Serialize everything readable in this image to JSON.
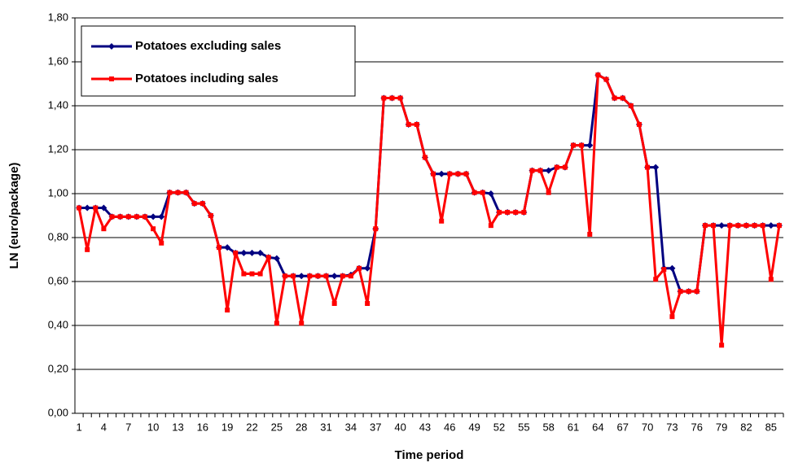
{
  "chart_data": {
    "type": "line",
    "x_label": "Time period",
    "y_label": "LN (euro/package)",
    "categories": [
      "1",
      null,
      null,
      "4",
      null,
      null,
      "7",
      null,
      null,
      "10",
      null,
      null,
      "13",
      null,
      null,
      "16",
      null,
      null,
      "19",
      null,
      null,
      "22",
      null,
      null,
      "25",
      null,
      null,
      "28",
      null,
      null,
      "31",
      null,
      null,
      "34",
      null,
      null,
      "37",
      null,
      null,
      "40",
      null,
      null,
      "43",
      null,
      null,
      "46",
      null,
      null,
      "49",
      null,
      null,
      "52",
      null,
      null,
      "55",
      null,
      null,
      "58",
      null,
      null,
      "61",
      null,
      null,
      "64",
      null,
      null,
      "67",
      null,
      null,
      "70",
      null,
      null,
      "73",
      null,
      null,
      "76",
      null,
      null,
      "79",
      null,
      null,
      "82",
      null,
      null,
      "85",
      null
    ],
    "series": [
      {
        "name": "Potatoes excluding sales",
        "color": "#000080",
        "marker": "diamond",
        "values": [
          0.935,
          0.935,
          0.935,
          0.935,
          0.895,
          0.895,
          0.895,
          0.895,
          0.895,
          0.895,
          0.895,
          1.005,
          1.005,
          1.005,
          0.955,
          0.955,
          0.9,
          0.755,
          0.755,
          0.73,
          0.73,
          0.73,
          0.73,
          0.71,
          0.705,
          0.625,
          0.625,
          0.625,
          0.625,
          0.625,
          0.625,
          0.625,
          0.625,
          0.63,
          0.66,
          0.66,
          0.84,
          1.435,
          1.435,
          1.435,
          1.315,
          1.315,
          1.165,
          1.09,
          1.09,
          1.09,
          1.09,
          1.09,
          1.005,
          1.005,
          1.0,
          0.915,
          0.915,
          0.915,
          0.915,
          1.105,
          1.105,
          1.105,
          1.12,
          1.12,
          1.22,
          1.22,
          1.22,
          1.54,
          1.52,
          1.435,
          1.435,
          1.4,
          1.315,
          1.12,
          1.12,
          0.66,
          0.66,
          0.555,
          0.555,
          0.555,
          0.855,
          0.855,
          0.855,
          0.855,
          0.855,
          0.855,
          0.855,
          0.855,
          0.855,
          0.855
        ]
      },
      {
        "name": "Potatoes including sales",
        "color": "#ff0000",
        "marker": "square",
        "values": [
          0.935,
          0.745,
          0.935,
          0.84,
          0.895,
          0.895,
          0.895,
          0.895,
          0.895,
          0.84,
          0.775,
          1.005,
          1.005,
          1.005,
          0.955,
          0.955,
          0.9,
          0.755,
          0.47,
          0.73,
          0.635,
          0.635,
          0.635,
          0.71,
          0.41,
          0.625,
          0.625,
          0.41,
          0.625,
          0.625,
          0.625,
          0.5,
          0.625,
          0.625,
          0.66,
          0.5,
          0.84,
          1.435,
          1.435,
          1.435,
          1.315,
          1.315,
          1.165,
          1.09,
          0.875,
          1.09,
          1.09,
          1.09,
          1.005,
          1.005,
          0.855,
          0.915,
          0.915,
          0.915,
          0.915,
          1.105,
          1.105,
          1.005,
          1.12,
          1.12,
          1.22,
          1.22,
          0.815,
          1.54,
          1.52,
          1.435,
          1.435,
          1.4,
          1.315,
          1.12,
          0.61,
          0.655,
          0.44,
          0.555,
          0.555,
          0.555,
          0.855,
          0.855,
          0.31,
          0.855,
          0.855,
          0.855,
          0.855,
          0.855,
          0.61,
          0.855
        ]
      }
    ],
    "ylim": [
      0,
      1.8
    ],
    "yticks": [
      {
        "value": 0,
        "label": "0,00"
      },
      {
        "value": 0.2,
        "label": "0,20"
      },
      {
        "value": 0.4,
        "label": "0,40"
      },
      {
        "value": 0.6,
        "label": "0,60"
      },
      {
        "value": 0.8,
        "label": "0,80"
      },
      {
        "value": 1.0,
        "label": "1,00"
      },
      {
        "value": 1.2,
        "label": "1,20"
      },
      {
        "value": 1.4,
        "label": "1,40"
      },
      {
        "value": 1.6,
        "label": "1,60"
      },
      {
        "value": 1.8,
        "label": "1,80"
      }
    ],
    "grid": true,
    "legend": "top-left"
  }
}
